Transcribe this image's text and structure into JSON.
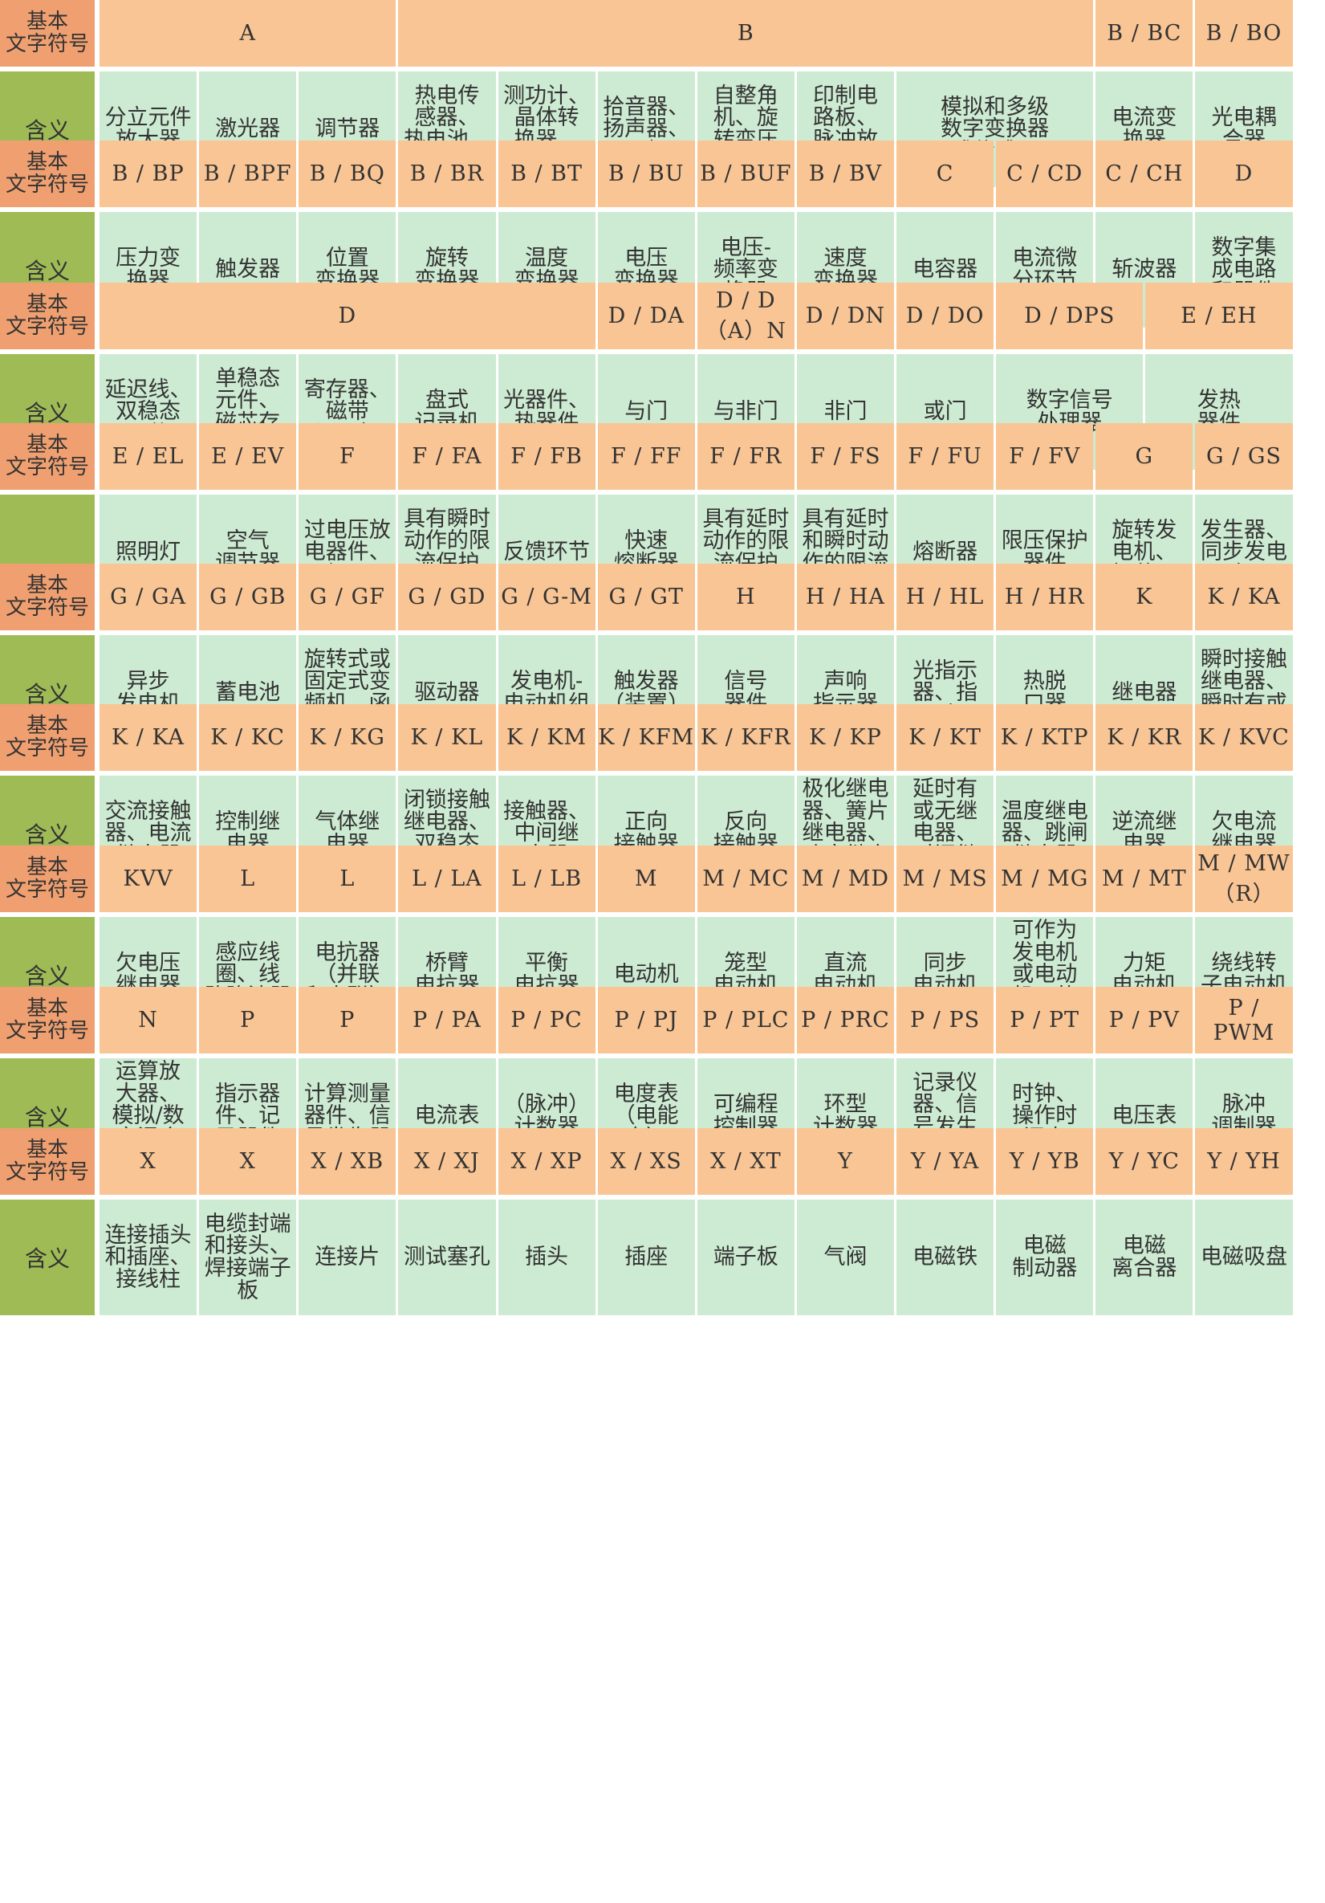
{
  "labels": {
    "code": "基本\n文字符号",
    "meaning": "含义"
  },
  "blocks": [
    {
      "codes": [
        [
          "A",
          3
        ],
        [
          "B",
          7
        ],
        [
          "B / BC",
          1
        ],
        [
          "B / BO",
          1
        ]
      ],
      "meanings": [
        "分立元件\n放大器",
        "激光器",
        "调节器",
        "热电传\n感器、\n热电池、\n光电池",
        "测功计、\n晶体转\n换器、\n送话器",
        "拾音器、\n扬声器、\n耳机",
        "自整角\n机、旋\n转变压\n器",
        "印制电\n路板、\n脉冲放\n大器",
        [
          "模拟和多级\n数字变换器\n或传感器",
          2
        ],
        "电流变\n换器",
        "光电耦\n合器"
      ]
    },
    {
      "codes": [
        [
          "B / BP",
          1
        ],
        [
          "B / BPF",
          1
        ],
        [
          "B / BQ",
          1
        ],
        [
          "B / BR",
          1
        ],
        [
          "B / BT",
          1
        ],
        [
          "B / BU",
          1
        ],
        [
          "B / BUF",
          1
        ],
        [
          "B / BV",
          1
        ],
        [
          "C",
          1
        ],
        [
          "C / CD",
          1
        ],
        [
          "C / CH",
          1
        ],
        [
          "D",
          1
        ]
      ],
      "meanings": [
        "压力变\n换器",
        "触发器",
        "位置\n变换器",
        "旋转\n变换器",
        "温度\n变换器",
        "电压\n变换器",
        "电压-\n频率变\n换器",
        "速度\n变换器",
        "电容器",
        "电流微\n分环节",
        "斩波器",
        "数字集\n成电路\n和器件"
      ]
    },
    {
      "codes": [
        [
          "D",
          5
        ],
        [
          "D / DA",
          1
        ],
        [
          "D / D\n（A）N",
          1
        ],
        [
          "D / DN",
          1
        ],
        [
          "D / DO",
          1
        ],
        [
          "D / DPS",
          1.5
        ],
        [
          "E / EH",
          1.5
        ]
      ],
      "meanings": [
        "延迟线、\n双稳态\n元件",
        "单稳态\n元件、\n磁芯存\n储器",
        "寄存器、\n磁带\n记录机",
        "盘式\n记录机",
        "光器件、\n热器件",
        "与门",
        "与非门",
        "非门",
        "或门",
        [
          "数字信号\n处理器",
          1.5
        ],
        [
          "发热\n器件",
          1.5
        ]
      ]
    },
    {
      "codes": [
        [
          "E / EL",
          1
        ],
        [
          "E / EV",
          1
        ],
        [
          "F",
          1
        ],
        [
          "F / FA",
          1
        ],
        [
          "F / FB",
          1
        ],
        [
          "F / FF",
          1
        ],
        [
          "F / FR",
          1
        ],
        [
          "F / FS",
          1
        ],
        [
          "F / FU",
          1
        ],
        [
          "F / FV",
          1
        ],
        [
          "G",
          1
        ],
        [
          "G / GS",
          1
        ]
      ],
      "meanings": [
        "照明灯",
        "空气\n调节器",
        "过电压放\n电器件、\n避雷器",
        "具有瞬时\n动作的限\n流保护\n器件",
        "反馈环节",
        "快速\n熔断器",
        "具有延时\n动作的限\n流保护\n器件",
        "具有延时\n和瞬时动\n作的限流\n保护器件",
        "熔断器",
        "限压保护\n器件",
        "旋转发\n电机、\n振荡器",
        "发生器、\n同步发电机"
      ],
      "meaning_label": ""
    },
    {
      "codes": [
        [
          "G / GA",
          1
        ],
        [
          "G / GB",
          1
        ],
        [
          "G / GF",
          1
        ],
        [
          "G / GD",
          1
        ],
        [
          "G / G-M",
          1
        ],
        [
          "G / GT",
          1
        ],
        [
          "H",
          1
        ],
        [
          "H / HA",
          1
        ],
        [
          "H / HL",
          1
        ],
        [
          "H / HR",
          1
        ],
        [
          "K",
          1
        ],
        [
          "K / KA",
          1
        ]
      ],
      "meanings": [
        "异步\n发电机",
        "蓄电池",
        "旋转式或\n固定式变\n频机、函\n数发生器",
        "驱动器",
        "发电机-\n电动机组",
        "触发器\n（装置）",
        "信号\n器件",
        "声响\n指示器",
        "光指示\n器、指\n示灯",
        "热脱\n口器",
        "继电器",
        "瞬时接触\n继电器、\n瞬时有或\n无继电器"
      ]
    },
    {
      "codes": [
        [
          "K / KA",
          1
        ],
        [
          "K / KC",
          1
        ],
        [
          "K / KG",
          1
        ],
        [
          "K / KL",
          1
        ],
        [
          "K / KM",
          1
        ],
        [
          "K / KFM",
          1
        ],
        [
          "K / KFR",
          1
        ],
        [
          "K / KP",
          1
        ],
        [
          "K / KT",
          1
        ],
        [
          "K / KTP",
          1
        ],
        [
          "K / KR",
          1
        ],
        [
          "K / KVC",
          1
        ]
      ],
      "meanings": [
        "交流接触\n器、电流\n继电器",
        "控制继\n电器",
        "气体继\n电器",
        "闭锁接触\n继电器、\n双稳态\n继电器",
        "接触器、\n中间继\n电器",
        "正向\n接触器",
        "反向\n接触器",
        "极化继电\n器、簧片\n继电器、\n功率继电\n器",
        "延时有\n或无继\n电器、\n时间继\n电器",
        "温度继电\n器、跳闸\n继电器",
        "逆流继\n电器",
        "欠电流\n继电器"
      ]
    },
    {
      "codes": [
        [
          "KVV",
          1
        ],
        [
          "L",
          1
        ],
        [
          "L",
          1
        ],
        [
          "L / LA",
          1
        ],
        [
          "L / LB",
          1
        ],
        [
          "M",
          1
        ],
        [
          "M / MC",
          1
        ],
        [
          "M / MD",
          1
        ],
        [
          "M / MS",
          1
        ],
        [
          "M / MG",
          1
        ],
        [
          "M / MT",
          1
        ],
        [
          "M / MW\n（R）",
          1
        ]
      ],
      "meanings": [
        "欠电压\n继电器",
        "感应线\n圈、线\n路陷波器",
        "电抗器\n（并联\n和串联）",
        "桥臂\n电抗器",
        "平衡\n电抗器",
        "电动机",
        "笼型\n电动机",
        "直流\n电动机",
        "同步\n电动机",
        "可作为\n发电机\n或电动\n机用的\n电动机",
        "力矩\n电动机",
        "绕线转\n子电动机"
      ]
    },
    {
      "codes": [
        [
          "N",
          1
        ],
        [
          "P",
          1
        ],
        [
          "P",
          1
        ],
        [
          "P / PA",
          1
        ],
        [
          "P / PC",
          1
        ],
        [
          "P / PJ",
          1
        ],
        [
          "P / PLC",
          1
        ],
        [
          "P / PRC",
          1
        ],
        [
          "P / PS",
          1
        ],
        [
          "P / PT",
          1
        ],
        [
          "P / PV",
          1
        ],
        [
          "P / PWM",
          1
        ]
      ],
      "meanings": [
        "运算放\n大器、\n模拟/数\n字混合\n器件",
        "指示器\n件、记\n录器件",
        "计算测量\n器件、信\n号发生器",
        "电流表",
        "（脉冲）\n计数器",
        "电度表\n（电能表）",
        "可编程\n控制器",
        "环型\n计数器",
        "记录仪\n器、信\n号发生\n器",
        "时钟、\n操作时\n间表",
        "电压表",
        "脉冲\n调制器"
      ]
    },
    {
      "codes": [
        [
          "X",
          1
        ],
        [
          "X",
          1
        ],
        [
          "X / XB",
          1
        ],
        [
          "X / XJ",
          1
        ],
        [
          "X / XP",
          1
        ],
        [
          "X / XS",
          1
        ],
        [
          "X / XT",
          1
        ],
        [
          "Y",
          1
        ],
        [
          "Y / YA",
          1
        ],
        [
          "Y / YB",
          1
        ],
        [
          "Y / YC",
          1
        ],
        [
          "Y / YH",
          1
        ]
      ],
      "meanings": [
        "连接插头\n和插座、\n接线柱",
        "电缆封端\n和接头、\n焊接端子\n板",
        "连接片",
        "测试塞孔",
        "插头",
        "插座",
        "端子板",
        "气阀",
        "电磁铁",
        "电磁\n制动器",
        "电磁\n离合器",
        "电磁吸盘"
      ]
    }
  ]
}
